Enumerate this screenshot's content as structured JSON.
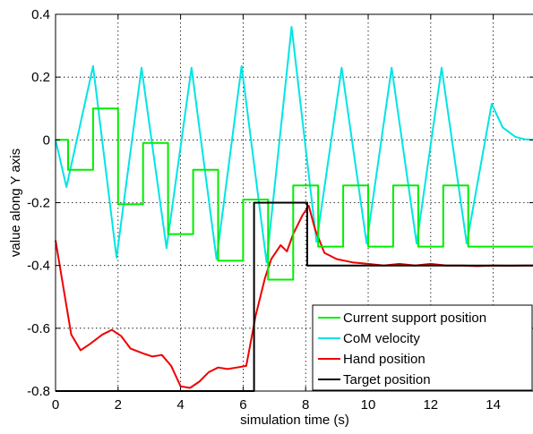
{
  "chart_data": {
    "type": "line",
    "title": "",
    "xlabel": "simulation time (s)",
    "ylabel": "value along Y axis",
    "xlim": [
      0,
      15.3
    ],
    "ylim": [
      -0.8,
      0.4
    ],
    "grid": true,
    "legend_position": "bottom-right",
    "x_ticks": [
      0,
      2,
      4,
      6,
      8,
      10,
      12,
      14
    ],
    "x_tick_labels": [
      "0",
      "2",
      "4",
      "6",
      "8",
      "10",
      "12",
      "14"
    ],
    "y_ticks": [
      -0.8,
      -0.6,
      -0.4,
      -0.2,
      0,
      0.2,
      0.4
    ],
    "y_tick_labels": [
      "-0.8",
      "-0.6",
      "-0.4",
      "-0.2",
      "0",
      "0.2",
      "0.4"
    ],
    "series": [
      {
        "name": "Current support position",
        "color": "#00ee00",
        "step": true,
        "x": [
          0,
          0.4,
          0.4,
          1.2,
          1.2,
          2.0,
          2.0,
          2.8,
          2.8,
          3.6,
          3.6,
          4.4,
          4.4,
          5.2,
          5.2,
          6.0,
          6.0,
          6.8,
          6.8,
          7.6,
          7.6,
          8.4,
          8.4,
          9.2,
          9.2,
          10.0,
          10.0,
          10.8,
          10.8,
          11.6,
          11.6,
          12.4,
          12.4,
          13.2,
          13.2,
          15.3
        ],
        "y": [
          0,
          0,
          -0.095,
          -0.095,
          0.1,
          0.1,
          -0.205,
          -0.205,
          -0.01,
          -0.01,
          -0.3,
          -0.3,
          -0.095,
          -0.095,
          -0.385,
          -0.385,
          -0.19,
          -0.19,
          -0.445,
          -0.445,
          -0.145,
          -0.145,
          -0.34,
          -0.34,
          -0.145,
          -0.145,
          -0.34,
          -0.34,
          -0.145,
          -0.145,
          -0.34,
          -0.34,
          -0.145,
          -0.145,
          -0.34,
          -0.34
        ]
      },
      {
        "name": "CoM velocity",
        "color": "#00e5e5",
        "x": [
          0,
          0.35,
          1.2,
          1.95,
          2.75,
          3.55,
          4.35,
          5.15,
          5.95,
          6.75,
          7.55,
          8.35,
          9.15,
          9.95,
          10.75,
          11.55,
          12.35,
          13.15,
          13.95,
          14.3,
          14.7,
          15.0,
          15.3
        ],
        "y": [
          0,
          -0.15,
          0.235,
          -0.375,
          0.23,
          -0.345,
          0.23,
          -0.38,
          0.235,
          -0.39,
          0.36,
          -0.325,
          0.23,
          -0.33,
          0.23,
          -0.33,
          0.23,
          -0.33,
          0.115,
          0.04,
          0.01,
          0.002,
          0
        ]
      },
      {
        "name": "Hand position",
        "color": "#ee0000",
        "x": [
          0,
          0.2,
          0.5,
          0.8,
          1.1,
          1.5,
          1.8,
          2.1,
          2.4,
          2.8,
          3.1,
          3.4,
          3.7,
          4.0,
          4.3,
          4.6,
          4.9,
          5.2,
          5.5,
          5.8,
          6.1,
          6.4,
          6.7,
          6.9,
          7.2,
          7.4,
          7.6,
          7.9,
          8.1,
          8.3,
          8.6,
          9.0,
          9.5,
          10.0,
          10.5,
          11.0,
          11.5,
          12.0,
          12.5,
          13.0,
          13.5,
          14.0,
          14.5,
          15.0,
          15.3
        ],
        "y": [
          -0.32,
          -0.44,
          -0.62,
          -0.67,
          -0.65,
          -0.62,
          -0.605,
          -0.625,
          -0.665,
          -0.68,
          -0.69,
          -0.685,
          -0.72,
          -0.785,
          -0.79,
          -0.77,
          -0.74,
          -0.725,
          -0.73,
          -0.725,
          -0.72,
          -0.56,
          -0.44,
          -0.38,
          -0.335,
          -0.355,
          -0.3,
          -0.24,
          -0.21,
          -0.285,
          -0.36,
          -0.38,
          -0.39,
          -0.395,
          -0.4,
          -0.395,
          -0.4,
          -0.395,
          -0.4,
          -0.4,
          -0.402,
          -0.4,
          -0.401,
          -0.4,
          -0.4
        ]
      },
      {
        "name": "Target position",
        "color": "#000000",
        "step": true,
        "x": [
          0,
          6.25,
          6.25,
          6.35,
          6.35,
          8.05,
          8.05,
          15.3
        ],
        "y": [
          -0.8,
          -0.8,
          -0.8,
          -0.8,
          -0.2,
          -0.2,
          -0.4,
          -0.4
        ]
      }
    ]
  }
}
